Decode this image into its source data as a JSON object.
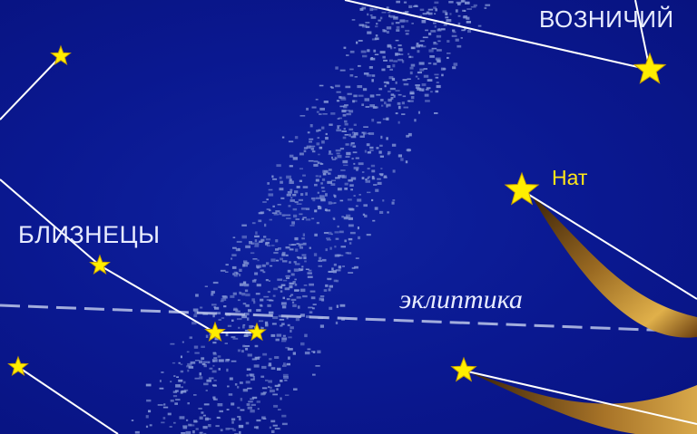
{
  "labels": {
    "gemini": "БЛИЗНЕЦЫ",
    "auriga": "ВОЗНИЧИЙ",
    "nath": "Нат",
    "ecliptic": "эклиптика"
  },
  "colors": {
    "sky": "#0b1a8c",
    "star": "#ffee00",
    "star_outline": "#c8a000",
    "constellation_line": "#ffffff",
    "label_text": "#e8ecff",
    "star_name_text": "#ffe619",
    "milky_way": "#8a9cd8",
    "horn": "#8a5a1c"
  },
  "icons": {
    "star": "five-pointed-star-icon"
  }
}
